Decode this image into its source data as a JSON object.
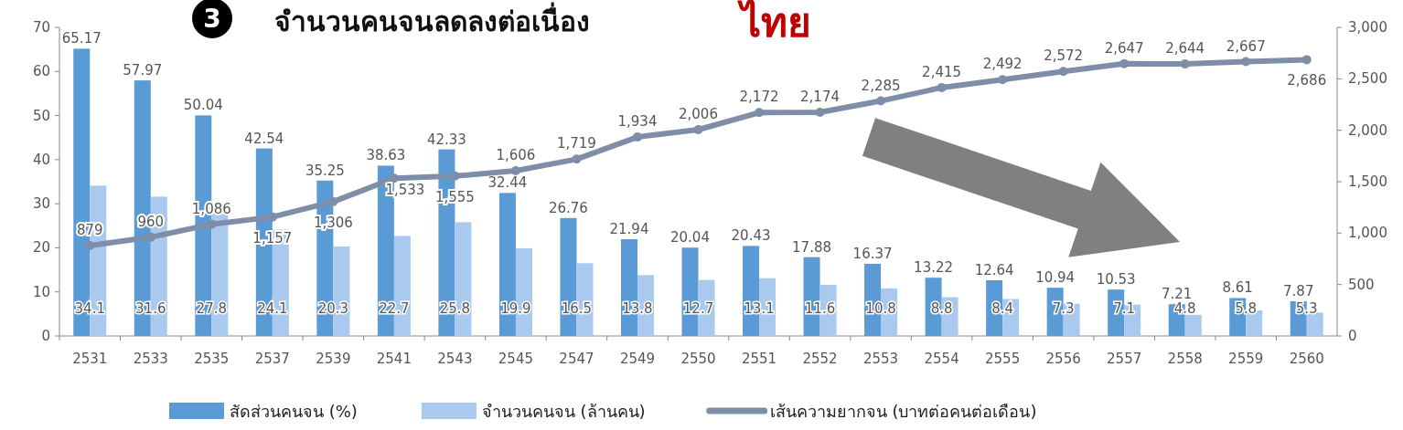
{
  "chart_data": {
    "type": "bar",
    "title": "จำนวนคนจนลดลงต่อเนื่อง",
    "annotations": [
      "3",
      "ไทย"
    ],
    "categories": [
      "2531",
      "2533",
      "2535",
      "2537",
      "2539",
      "2541",
      "2543",
      "2545",
      "2547",
      "2549",
      "2550",
      "2551",
      "2552",
      "2553",
      "2554",
      "2555",
      "2556",
      "2557",
      "2558",
      "2559",
      "2560"
    ],
    "series": [
      {
        "name": "สัดส่วนคนจน (%)",
        "color": "#5b9bd5",
        "values": [
          65.17,
          57.97,
          50.04,
          42.54,
          35.25,
          38.63,
          42.33,
          32.44,
          26.76,
          21.94,
          20.04,
          20.43,
          17.88,
          16.37,
          13.22,
          12.64,
          10.94,
          10.53,
          7.21,
          8.61,
          7.87
        ],
        "value_labels": [
          "65.17",
          "57.97",
          "50.04",
          "42.54",
          "35.25",
          "38.63",
          "42.33",
          "32.44",
          "26.76",
          "21.94",
          "20.04",
          "20.43",
          "17.88",
          "16.37",
          "13.22",
          "12.64",
          "10.94",
          "10.53",
          "7.21",
          "8.61",
          "7.87"
        ]
      },
      {
        "name": "จำนวนคนจน (ล้านคน)",
        "color": "#a9c9ee",
        "values": [
          34.1,
          31.6,
          27.8,
          24.1,
          20.3,
          22.7,
          25.8,
          19.9,
          16.5,
          13.8,
          12.7,
          13.1,
          11.6,
          10.8,
          8.8,
          8.4,
          7.3,
          7.1,
          4.8,
          5.8,
          5.3
        ],
        "value_labels": [
          "34.1",
          "31.6",
          "27.8",
          "24.1",
          "20.3",
          "22.7",
          "25.8",
          "19.9",
          "16.5",
          "13.8",
          "12.7",
          "13.1",
          "11.6",
          "10.8",
          "8.8",
          "8.4",
          "7.3",
          "7.1",
          "4.8",
          "5.8",
          "5.3"
        ]
      },
      {
        "name": "เส้นความยากจน (บาทต่อคนต่อเดือน)",
        "type": "line",
        "axis": "y2",
        "color": "#7f8ea8",
        "values": [
          879,
          960,
          1086,
          1157,
          1306,
          1533,
          1555,
          1606,
          1719,
          1934,
          2006,
          2172,
          2174,
          2285,
          2415,
          2492,
          2572,
          2647,
          2644,
          2667,
          2686
        ],
        "value_labels": [
          "879",
          "960",
          "1,086",
          "1,157",
          "1,306",
          "1,533",
          "1,555",
          "1,606",
          "1,719",
          "1,934",
          "2,006",
          "2,172",
          "2,174",
          "2,285",
          "2,415",
          "2,492",
          "2,572",
          "2,647",
          "2,644",
          "2,667",
          "2,686"
        ]
      }
    ],
    "ylim": [
      0,
      70
    ],
    "yticks": [
      0,
      10,
      20,
      30,
      40,
      50,
      60,
      70
    ],
    "y2lim": [
      0,
      3000
    ],
    "y2ticks": [
      0,
      500,
      {
        "value": 1000,
        "label": "1,000"
      },
      {
        "value": 1500,
        "label": "1,500"
      },
      {
        "value": 2000,
        "label": "2,000"
      },
      {
        "value": 2500,
        "label": "2,500"
      },
      {
        "value": 3000,
        "label": "3,000"
      }
    ],
    "legend": "bottom",
    "marker": "circle",
    "line_style": "solid",
    "grid": false
  }
}
